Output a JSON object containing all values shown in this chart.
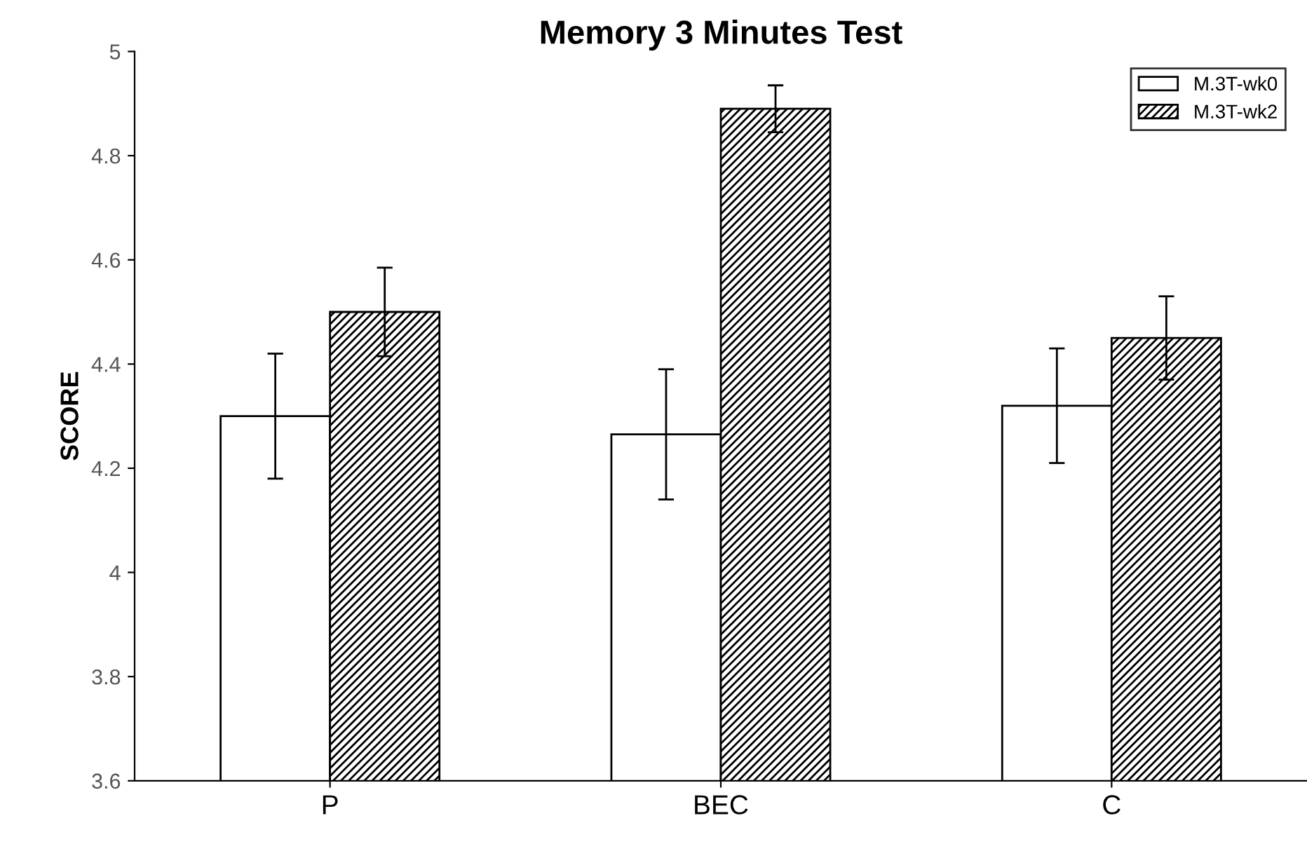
{
  "chart_data": {
    "type": "bar",
    "title": "Memory 3 Minutes Test",
    "ylabel": "SCORE",
    "categories": [
      "P",
      "BEC",
      "C"
    ],
    "series": [
      {
        "name": "M.3T-wk0",
        "color": "#ffffff",
        "values": [
          4.3,
          4.265,
          4.32
        ],
        "errors": [
          0.12,
          0.125,
          0.11
        ]
      },
      {
        "name": "M.3T-wk2",
        "color": "#000000",
        "values": [
          4.5,
          4.89,
          4.45
        ],
        "errors": [
          0.085,
          0.045,
          0.08
        ]
      }
    ],
    "ylim": [
      3.6,
      5
    ],
    "yticks": [
      3.6,
      3.8,
      4,
      4.2,
      4.4,
      4.6,
      4.8,
      5
    ],
    "legend": "top right",
    "grid": false
  }
}
